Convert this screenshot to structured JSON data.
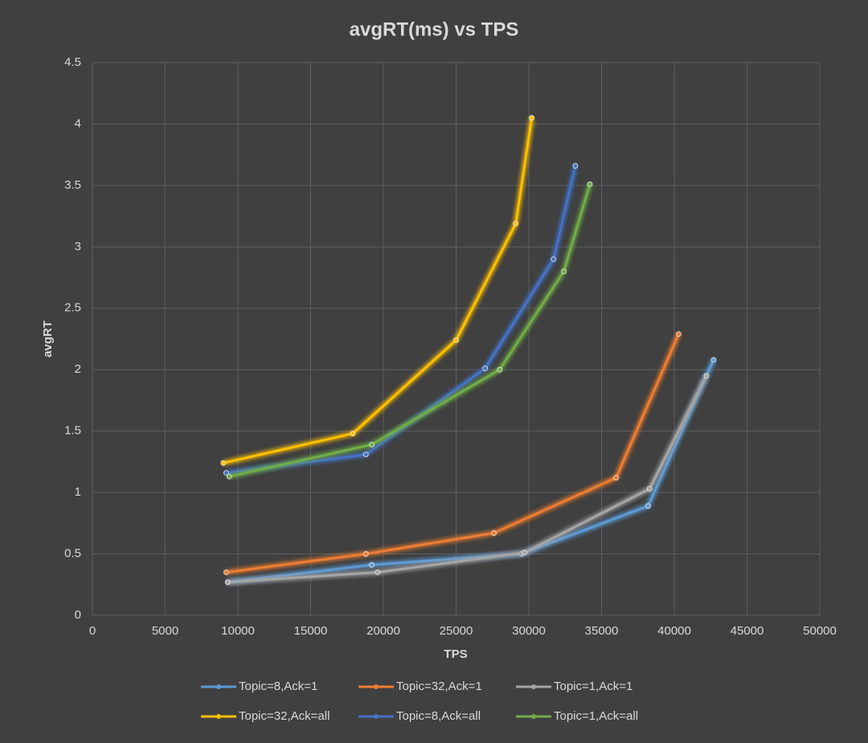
{
  "chart_data": {
    "type": "line",
    "title": "avgRT(ms) vs TPS",
    "x_label": "TPS",
    "y_label": "avgRT",
    "xlim": [
      0,
      50000
    ],
    "xticks": [
      0,
      5000,
      10000,
      15000,
      20000,
      25000,
      30000,
      35000,
      40000,
      45000,
      50000
    ],
    "ylim": [
      0,
      4.5
    ],
    "yticks": [
      0,
      0.5,
      1,
      1.5,
      2,
      2.5,
      3,
      3.5,
      4,
      4.5
    ],
    "grid": true,
    "legend": "bottom",
    "series": [
      {
        "name": "Topic=8,Ack=1",
        "color": "#5b9bd5",
        "x": [
          9300,
          19200,
          29500,
          38200,
          42700
        ],
        "values": [
          0.27,
          0.41,
          0.5,
          0.89,
          2.08
        ]
      },
      {
        "name": "Topic=32,Ack=1",
        "color": "#ed7d31",
        "x": [
          9200,
          18800,
          27600,
          36000,
          40300
        ],
        "values": [
          0.35,
          0.5,
          0.67,
          1.12,
          2.29
        ]
      },
      {
        "name": "Topic=1,Ack=1",
        "color": "#a5a5a5",
        "x": [
          9300,
          19600,
          29700,
          38300,
          42200
        ],
        "values": [
          0.27,
          0.35,
          0.51,
          1.03,
          1.95
        ]
      },
      {
        "name": "Topic=32,Ack=all",
        "color": "#ffc000",
        "x": [
          9000,
          17900,
          25000,
          29100,
          30200
        ],
        "values": [
          1.24,
          1.48,
          2.24,
          3.19,
          4.05
        ]
      },
      {
        "name": "Topic=8,Ack=all",
        "color": "#4472c4",
        "x": [
          9200,
          18800,
          27000,
          31700,
          33200
        ],
        "values": [
          1.16,
          1.31,
          2.01,
          2.9,
          3.66
        ]
      },
      {
        "name": "Topic=1,Ack=all",
        "color": "#70ad47",
        "x": [
          9400,
          19200,
          28000,
          32400,
          34200
        ],
        "values": [
          1.13,
          1.39,
          2.0,
          2.8,
          3.51
        ]
      }
    ]
  }
}
